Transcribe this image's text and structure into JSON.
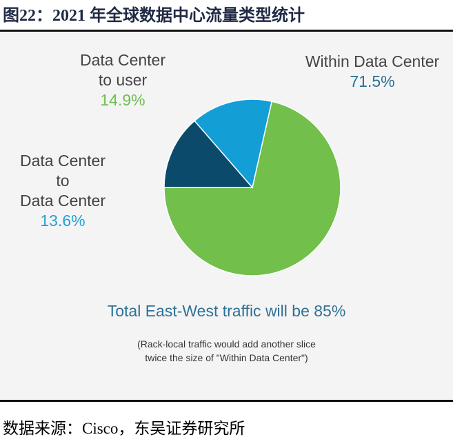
{
  "figure": {
    "title": "图22：2021 年全球数据中心流量类型统计",
    "source": "数据来源：Cisco，东吴证券研究所"
  },
  "chart_data": {
    "type": "pie",
    "slices": [
      {
        "label_lines": [
          "Within Data Center"
        ],
        "value": 71.5,
        "value_text": "71.5%",
        "color": "#72bf4b",
        "pct_color": "#2b6f95"
      },
      {
        "label_lines": [
          "Data Center",
          "to",
          "Data Center"
        ],
        "value": 13.6,
        "value_text": "13.6%",
        "color": "#0b4a6b",
        "pct_color": "#1fa2d6"
      },
      {
        "label_lines": [
          "Data Center",
          "to user"
        ],
        "value": 14.9,
        "value_text": "14.9%",
        "color": "#139ed6",
        "pct_color": "#6cbf4e"
      }
    ],
    "annotations": [
      "Total East-West traffic will be 85%",
      "(Rack-local traffic would add another slice",
      "twice the size of \"Within Data Center\")"
    ]
  }
}
